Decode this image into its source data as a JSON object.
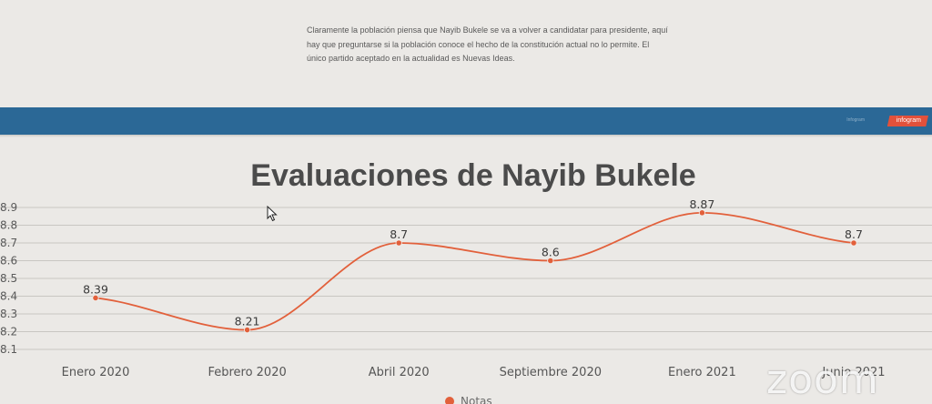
{
  "paragraph": "Claramente la población piensa que Nayib Bukele se va a volver a candidatar para presidente, aquí hay que preguntarse si la población conoce el hecho de la constitución actual no lo permite. El único partido aceptado en la actualidad es Nuevas Ideas.",
  "banner": {
    "brand_small": "Infogram",
    "badge": "infogram"
  },
  "watermark": "zoom",
  "colors": {
    "band": "#2b6896",
    "line": "#e2603b",
    "badge": "#e2513b"
  },
  "chart_data": {
    "type": "line",
    "title": "Evaluaciones de Nayib Bukele",
    "categories": [
      "Enero 2020",
      "Febrero 2020",
      "Abril 2020",
      "Septiembre 2020",
      "Enero 2021",
      "Junio 2021"
    ],
    "series": [
      {
        "name": "Notas",
        "values": [
          8.39,
          8.21,
          8.7,
          8.6,
          8.87,
          8.7
        ]
      }
    ],
    "data_labels": [
      "8.39",
      "8.21",
      "8.7",
      "8.6",
      "8.87",
      "8.7"
    ],
    "yticks": [
      "8.1",
      "8.2",
      "8.3",
      "8.4",
      "8.5",
      "8.6",
      "8.7",
      "8.8",
      "8.9"
    ],
    "ylim": [
      8.1,
      8.9
    ],
    "grid": true,
    "legend_position": "bottom",
    "smooth": true
  }
}
